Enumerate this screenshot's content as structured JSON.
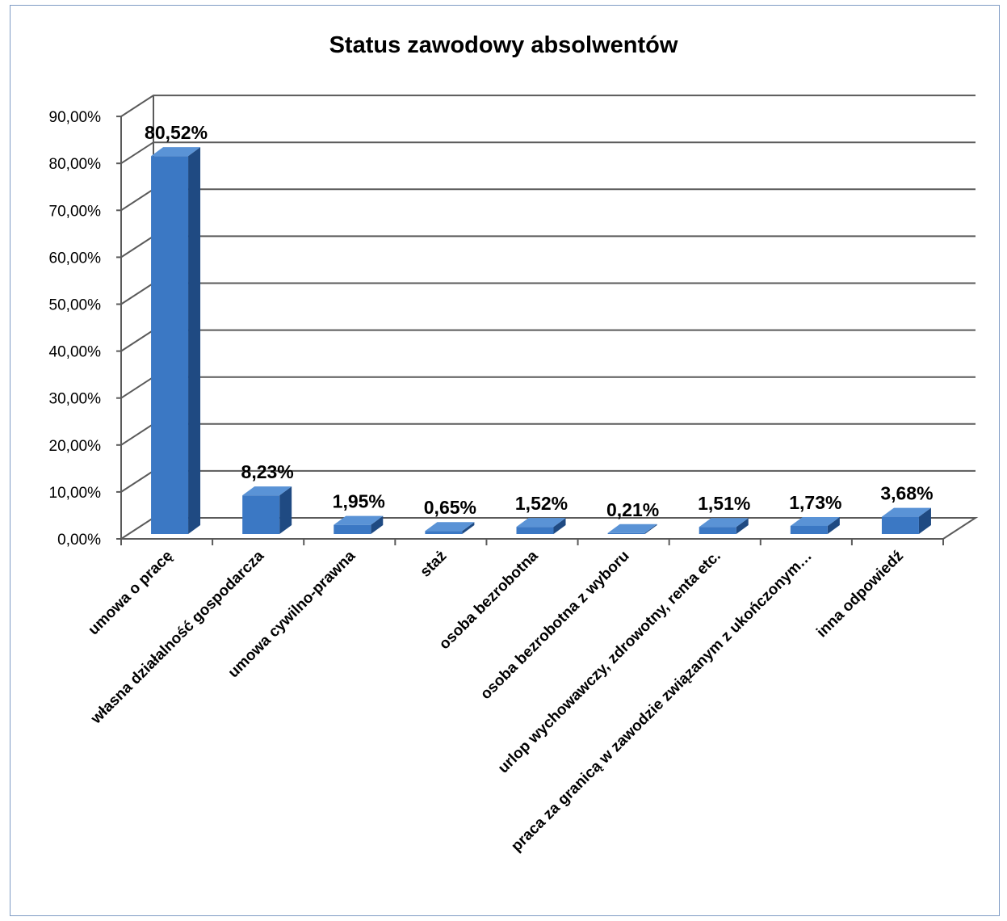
{
  "chart_data": {
    "type": "bar",
    "title": "Status zawodowy absolwentów",
    "xlabel": "",
    "ylabel": "",
    "ylim": [
      0,
      90
    ],
    "grid": true,
    "three_d": true,
    "y_tick_labels": [
      "0,00%",
      "10,00%",
      "20,00%",
      "30,00%",
      "40,00%",
      "50,00%",
      "60,00%",
      "70,00%",
      "80,00%",
      "90,00%"
    ],
    "categories": [
      "umowa o pracę",
      "własna działalność gospodarcza",
      "umowa cywilno-prawna",
      "staż",
      "osoba bezrobotna",
      "osoba bezrobotna z wyboru",
      "urlop wychowawczy, zdrowotny, renta  etc.",
      "praca za granicą w zawodzie związanym z ukończonym…",
      "inna odpowiedź"
    ],
    "values": [
      80.52,
      8.23,
      1.95,
      0.65,
      1.52,
      0.21,
      1.51,
      1.73,
      3.68
    ],
    "data_labels": [
      "80,52%",
      "8,23%",
      "1,95%",
      "0,65%",
      "1,52%",
      "0,21%",
      "1,51%",
      "1,73%",
      "3,68%"
    ],
    "colors": {
      "bar_front": "#3b78c4",
      "bar_side": "#1f4a82",
      "bar_top": "#5a93d6",
      "grid": "#5a5a5a",
      "frame": "#7f9bc4"
    }
  }
}
